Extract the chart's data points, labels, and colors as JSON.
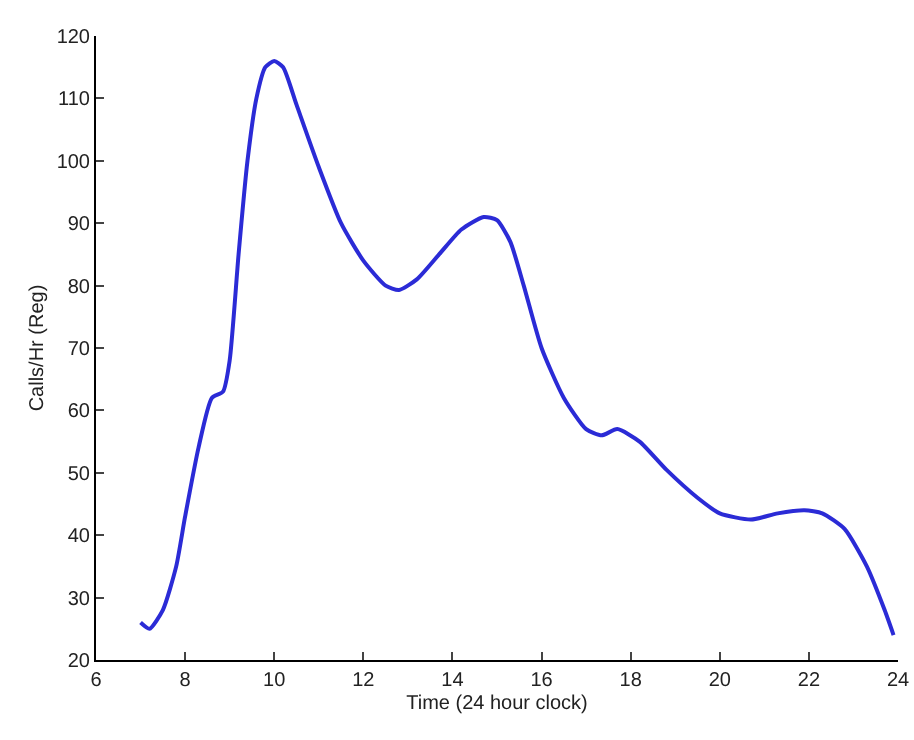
{
  "chart_data": {
    "type": "line",
    "xlabel": "Time (24 hour clock)",
    "ylabel": "Calls/Hr (Reg)",
    "xlim": [
      6,
      24
    ],
    "xticks": [
      6,
      8,
      10,
      12,
      14,
      16,
      18,
      20,
      22,
      24
    ],
    "ylim": [
      20,
      120
    ],
    "yticks": [
      20,
      30,
      40,
      50,
      60,
      70,
      80,
      90,
      100,
      110,
      120
    ],
    "marker": "none",
    "line_style": "solid",
    "series": [
      {
        "color": "#2b2bd6",
        "x": [
          7.0,
          7.2,
          7.5,
          7.8,
          8.0,
          8.3,
          8.6,
          8.85,
          9.0,
          9.2,
          9.4,
          9.6,
          9.8,
          10.0,
          10.2,
          10.5,
          11,
          11.5,
          12,
          12.5,
          12.8,
          13.2,
          13.7,
          14.2,
          14.7,
          15.0,
          15.3,
          15.6,
          16,
          16.5,
          17,
          17.35,
          17.7,
          18.2,
          18.8,
          19.5,
          20,
          20.7,
          21.3,
          21.9,
          22.3,
          22.8,
          23.3,
          23.7,
          23.9
        ],
        "values": [
          26,
          25,
          28,
          35,
          43,
          54,
          62,
          63,
          68,
          85,
          100,
          110,
          115,
          116,
          115,
          109,
          99,
          90,
          84,
          80,
          79.3,
          81,
          85,
          89,
          91,
          90.5,
          87,
          80,
          70,
          62,
          57,
          56,
          57,
          55,
          50.5,
          46,
          43.5,
          42.5,
          43.5,
          44,
          43.5,
          41,
          35,
          28,
          24
        ]
      }
    ]
  }
}
